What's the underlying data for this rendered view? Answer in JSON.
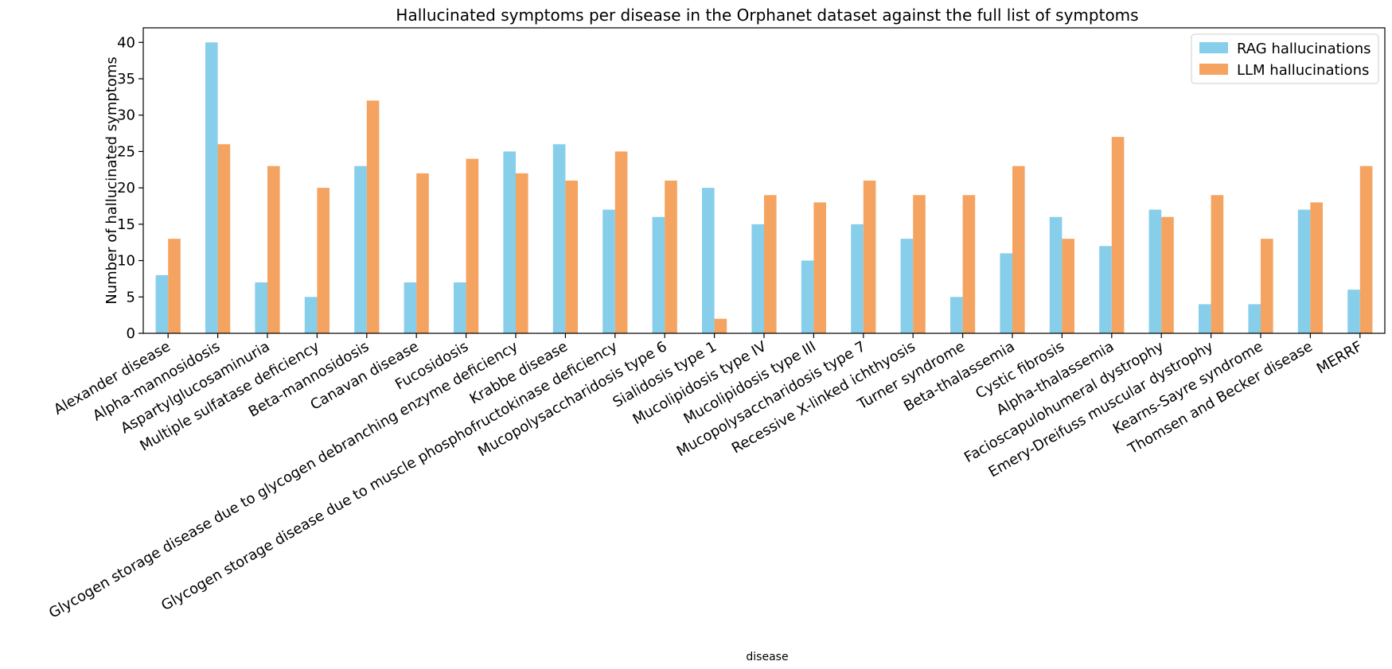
{
  "chart_data": {
    "type": "bar",
    "title": "Hallucinated symptoms per disease in the Orphanet dataset against the full list of symptoms",
    "xlabel": "disease",
    "ylabel": "Number of hallucinated symptoms",
    "ylim": [
      0,
      42
    ],
    "yticks": [
      0,
      5,
      10,
      15,
      20,
      25,
      30,
      35,
      40
    ],
    "grid": false,
    "legend_position": "top-right",
    "categories": [
      "Alexander disease",
      "Alpha-mannosidosis",
      "Aspartylglucosaminuria",
      "Multiple sulfatase deficiency",
      "Beta-mannosidosis",
      "Canavan disease",
      "Fucosidosis",
      "Glycogen storage disease due to glycogen debranching enzyme deficiency",
      "Krabbe disease",
      "Glycogen storage disease due to muscle phosphofructokinase deficiency",
      "Mucopolysaccharidosis type 6",
      "Sialidosis type 1",
      "Mucolipidosis type IV",
      "Mucolipidosis type III",
      "Mucopolysaccharidosis type 7",
      "Recessive X-linked ichthyosis",
      "Turner syndrome",
      "Beta-thalassemia",
      "Cystic fibrosis",
      "Alpha-thalassemia",
      "Facioscapulohumeral dystrophy",
      "Emery-Dreifuss muscular dystrophy",
      "Kearns-Sayre syndrome",
      "Thomsen and Becker disease",
      "MERRF"
    ],
    "series": [
      {
        "name": "RAG hallucinations",
        "color": "#87ceeb",
        "values": [
          8,
          40,
          7,
          5,
          23,
          7,
          7,
          25,
          26,
          17,
          16,
          20,
          15,
          10,
          15,
          13,
          5,
          11,
          16,
          12,
          17,
          4,
          4,
          17,
          6
        ]
      },
      {
        "name": "LLM hallucinations",
        "color": "#f4a460",
        "values": [
          13,
          26,
          23,
          20,
          32,
          22,
          24,
          22,
          21,
          25,
          21,
          2,
          19,
          18,
          21,
          19,
          19,
          23,
          13,
          27,
          16,
          19,
          13,
          18,
          23
        ]
      }
    ]
  }
}
